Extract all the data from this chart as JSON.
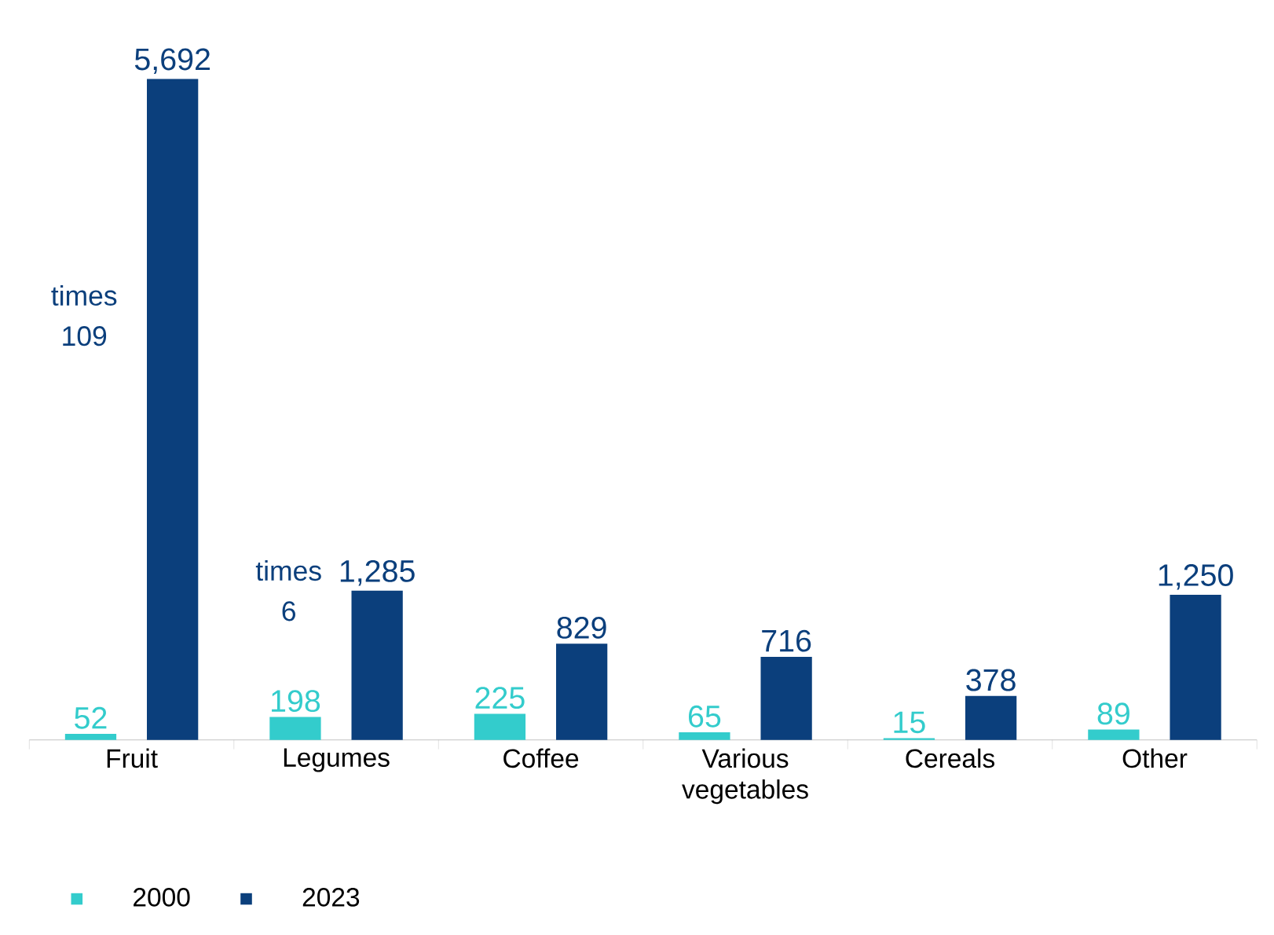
{
  "chart_data": {
    "type": "bar",
    "categories": [
      "Fruit",
      "Legumes",
      "Coffee",
      "Various vegetables",
      "Cereals",
      "Other"
    ],
    "series": [
      {
        "name": "2000",
        "color": "#33cccc",
        "values": [
          52,
          198,
          225,
          65,
          15,
          89
        ],
        "value_labels": [
          "52",
          "198",
          "225",
          "65",
          "15",
          "89"
        ]
      },
      {
        "name": "2023",
        "color": "#0b3f7c",
        "values": [
          5692,
          1285,
          829,
          716,
          378,
          1250
        ],
        "value_labels": [
          "5,692",
          "1,285",
          "829",
          "716",
          "378",
          "1,250"
        ]
      }
    ],
    "annotations": [
      "times 109",
      "times 6"
    ],
    "legend": "bottom left"
  }
}
